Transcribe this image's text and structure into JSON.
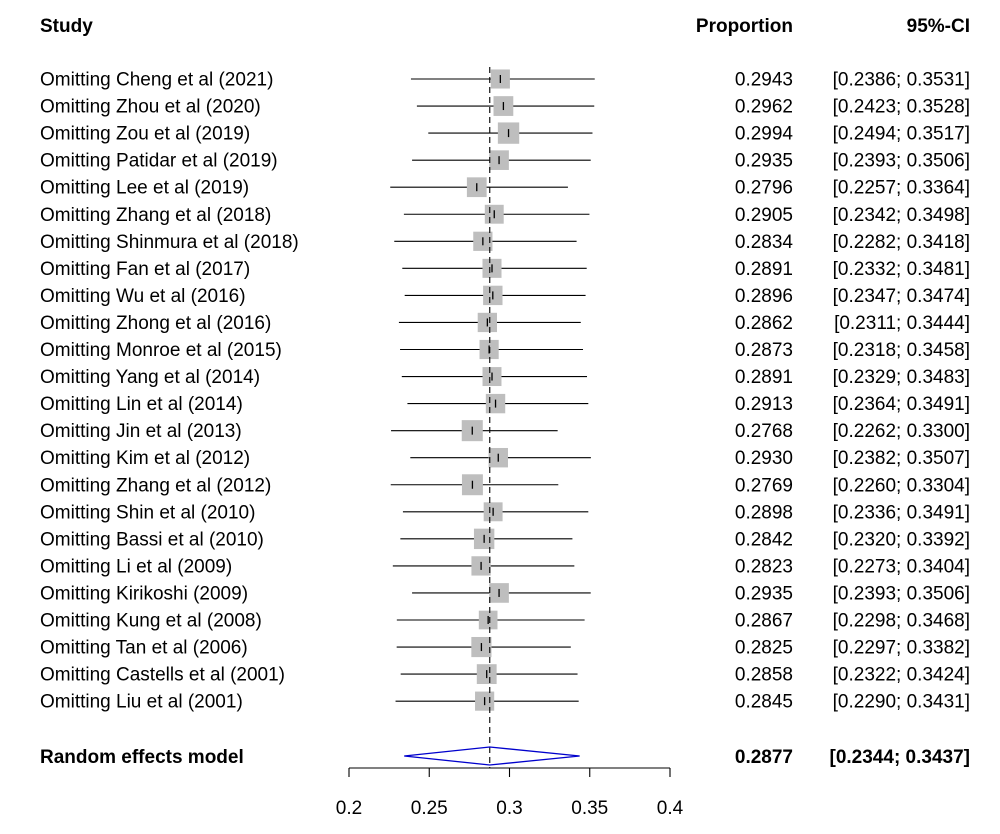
{
  "headers": {
    "study": "Study",
    "proportion": "Proportion",
    "ci": "95%-CI"
  },
  "chart_data": {
    "type": "forest",
    "xlim": [
      0.2,
      0.4
    ],
    "x_ticks": [
      {
        "value": 0.2,
        "label": "0.2"
      },
      {
        "value": 0.25,
        "label": "0.25"
      },
      {
        "value": 0.3,
        "label": "0.3"
      },
      {
        "value": 0.35,
        "label": "0.35"
      },
      {
        "value": 0.4,
        "label": "0.4"
      }
    ],
    "reference_line": 0.2877,
    "studies": [
      {
        "label": "Omitting Cheng et al (2021)",
        "estimate": 0.2943,
        "lower": 0.2386,
        "upper": 0.3531,
        "est_text": "0.2943",
        "ci_text": "[0.2386; 0.3531]"
      },
      {
        "label": "Omitting Zhou et al (2020)",
        "estimate": 0.2962,
        "lower": 0.2423,
        "upper": 0.3528,
        "est_text": "0.2962",
        "ci_text": "[0.2423; 0.3528]"
      },
      {
        "label": "Omitting Zou et al (2019)",
        "estimate": 0.2994,
        "lower": 0.2494,
        "upper": 0.3517,
        "est_text": "0.2994",
        "ci_text": "[0.2494; 0.3517]"
      },
      {
        "label": "Omitting Patidar et al (2019)",
        "estimate": 0.2935,
        "lower": 0.2393,
        "upper": 0.3506,
        "est_text": "0.2935",
        "ci_text": "[0.2393; 0.3506]"
      },
      {
        "label": "Omitting Lee  et al  (2019)",
        "estimate": 0.2796,
        "lower": 0.2257,
        "upper": 0.3364,
        "est_text": "0.2796",
        "ci_text": "[0.2257; 0.3364]"
      },
      {
        "label": "Omitting Zhang et al  (2018)",
        "estimate": 0.2905,
        "lower": 0.2342,
        "upper": 0.3498,
        "est_text": "0.2905",
        "ci_text": "[0.2342; 0.3498]"
      },
      {
        "label": "Omitting Shinmura et al (2018)",
        "estimate": 0.2834,
        "lower": 0.2282,
        "upper": 0.3418,
        "est_text": "0.2834",
        "ci_text": "[0.2282; 0.3418]"
      },
      {
        "label": "Omitting Fan et al (2017)",
        "estimate": 0.2891,
        "lower": 0.2332,
        "upper": 0.3481,
        "est_text": "0.2891",
        "ci_text": "[0.2332; 0.3481]"
      },
      {
        "label": "Omitting Wu et al (2016)",
        "estimate": 0.2896,
        "lower": 0.2347,
        "upper": 0.3474,
        "est_text": "0.2896",
        "ci_text": "[0.2347; 0.3474]"
      },
      {
        "label": "Omitting Zhong et al (2016)",
        "estimate": 0.2862,
        "lower": 0.2311,
        "upper": 0.3444,
        "est_text": "0.2862",
        "ci_text": "[0.2311; 0.3444]"
      },
      {
        "label": "Omitting Monroe et al (2015)",
        "estimate": 0.2873,
        "lower": 0.2318,
        "upper": 0.3458,
        "est_text": "0.2873",
        "ci_text": "[0.2318; 0.3458]"
      },
      {
        "label": "Omitting Yang et al (2014)",
        "estimate": 0.2891,
        "lower": 0.2329,
        "upper": 0.3483,
        "est_text": "0.2891",
        "ci_text": "[0.2329; 0.3483]"
      },
      {
        "label": "Omitting Lin et al (2014)",
        "estimate": 0.2913,
        "lower": 0.2364,
        "upper": 0.3491,
        "est_text": "0.2913",
        "ci_text": "[0.2364; 0.3491]"
      },
      {
        "label": "Omitting Jin et al (2013)",
        "estimate": 0.2768,
        "lower": 0.2262,
        "upper": 0.33,
        "est_text": "0.2768",
        "ci_text": "[0.2262; 0.3300]"
      },
      {
        "label": "Omitting Kim et al (2012)",
        "estimate": 0.293,
        "lower": 0.2382,
        "upper": 0.3507,
        "est_text": "0.2930",
        "ci_text": "[0.2382; 0.3507]"
      },
      {
        "label": "Omitting Zhang et al (2012)",
        "estimate": 0.2769,
        "lower": 0.226,
        "upper": 0.3304,
        "est_text": "0.2769",
        "ci_text": "[0.2260; 0.3304]"
      },
      {
        "label": "Omitting Shin et al (2010)",
        "estimate": 0.2898,
        "lower": 0.2336,
        "upper": 0.3491,
        "est_text": "0.2898",
        "ci_text": "[0.2336; 0.3491]"
      },
      {
        "label": "Omitting Bassi  et al (2010)",
        "estimate": 0.2842,
        "lower": 0.232,
        "upper": 0.3392,
        "est_text": "0.2842",
        "ci_text": "[0.2320; 0.3392]"
      },
      {
        "label": "Omitting Li et al (2009)",
        "estimate": 0.2823,
        "lower": 0.2273,
        "upper": 0.3404,
        "est_text": "0.2823",
        "ci_text": "[0.2273; 0.3404]"
      },
      {
        "label": "Omitting Kirikoshi (2009)",
        "estimate": 0.2935,
        "lower": 0.2393,
        "upper": 0.3506,
        "est_text": "0.2935",
        "ci_text": "[0.2393; 0.3506]"
      },
      {
        "label": "Omitting Kung et al (2008)",
        "estimate": 0.2867,
        "lower": 0.2298,
        "upper": 0.3468,
        "est_text": "0.2867",
        "ci_text": "[0.2298; 0.3468]"
      },
      {
        "label": "Omitting Tan et al (2006)",
        "estimate": 0.2825,
        "lower": 0.2297,
        "upper": 0.3382,
        "est_text": "0.2825",
        "ci_text": "[0.2297; 0.3382]"
      },
      {
        "label": "Omitting Castells et al (2001)",
        "estimate": 0.2858,
        "lower": 0.2322,
        "upper": 0.3424,
        "est_text": "0.2858",
        "ci_text": "[0.2322; 0.3424]"
      },
      {
        "label": "Omitting Liu et al (2001)",
        "estimate": 0.2845,
        "lower": 0.229,
        "upper": 0.3431,
        "est_text": "0.2845",
        "ci_text": "[0.2290; 0.3431]"
      }
    ],
    "summary": {
      "label": "Random effects model",
      "estimate": 0.2877,
      "lower": 0.2344,
      "upper": 0.3437,
      "est_text": "0.2877",
      "ci_text": "[0.2344; 0.3437]"
    },
    "colors": {
      "box": "#bebebe",
      "line": "#000000",
      "diamond": "#0000cc"
    }
  }
}
